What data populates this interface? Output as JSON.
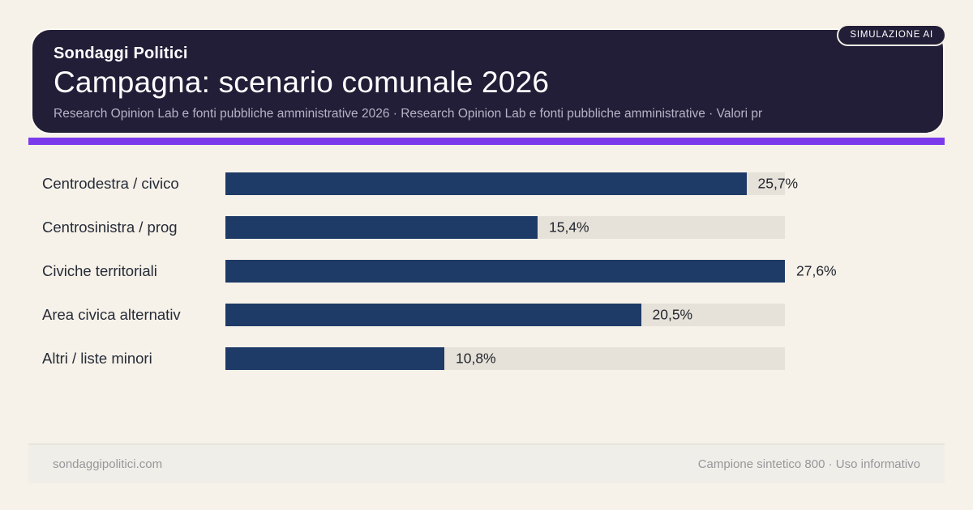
{
  "badge": {
    "label": "SIMULAZIONE AI"
  },
  "header": {
    "kicker": "Sondaggi Politici",
    "title": "Campagna: scenario comunale 2026",
    "subtitle": "Research Opinion Lab e fonti pubbliche amministrative 2026 · Research Opinion Lab e fonti pubbliche amministrative · Valori pr"
  },
  "chart_data": {
    "type": "bar",
    "orientation": "horizontal",
    "categories": [
      "Centrodestra / civico",
      "Centrosinistra / prog",
      "Civiche territoriali",
      "Area civica alternativ",
      "Altri / liste minori"
    ],
    "values": [
      25.7,
      15.4,
      27.6,
      20.5,
      10.8
    ],
    "value_labels": [
      "25,7%",
      "15,4%",
      "27,6%",
      "20,5%",
      "10,8%"
    ],
    "xmax": 27.6,
    "grid": false,
    "legend": false,
    "bar_color": "#1e3a66",
    "track_color": "#e6e2d9"
  },
  "footer": {
    "left": "sondaggipolitici.com",
    "right": "Campione sintetico 800 · Uso informativo"
  },
  "colors": {
    "background": "#f6f2e9",
    "header_bg": "#221e38",
    "accent": "#7c3aed",
    "bar": "#1e3a66",
    "track": "#e6e2d9"
  }
}
